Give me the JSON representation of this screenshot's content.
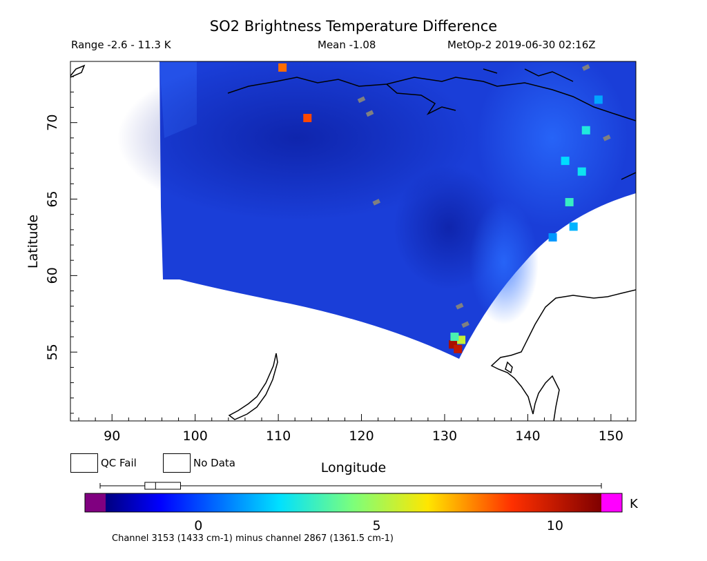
{
  "header": {
    "title": "SO2 Brightness Temperature Difference",
    "range": "Range -2.6 - 11.3 K",
    "mean": "Mean -1.08",
    "satellite_time": "MetOp-2 2019-06-30 02:16Z"
  },
  "legend": {
    "qc_fail_label": "QC Fail",
    "qc_fail_color": "#808080",
    "no_data_label": "No Data",
    "no_data_color": "#ffffff"
  },
  "colorbar": {
    "unit": "K",
    "ticks": [
      0,
      5,
      10
    ],
    "min": -2.6,
    "max": 11.3,
    "under_color": "#800080",
    "over_color": "#ff00ff",
    "box_summary": {
      "whisker_low": -2.6,
      "q1": -1.5,
      "median": -1.2,
      "q3": -0.5,
      "whisker_high": 11.3
    }
  },
  "footnote": "Channel 3153 (1433 cm-1) minus channel 2867 (1361.5 cm-1)",
  "chart_data": {
    "type": "heatmap",
    "title": "SO2 Brightness Temperature Difference",
    "xlabel": "Longitude",
    "ylabel": "Latitude",
    "xlim": [
      85,
      153
    ],
    "ylim": [
      50.5,
      74
    ],
    "xticks": [
      90,
      100,
      110,
      120,
      130,
      140,
      150
    ],
    "yticks": [
      55,
      60,
      65,
      70
    ],
    "background_field_value": -1.1,
    "hotspots": [
      {
        "lon": 131.0,
        "lat": 55.5,
        "value": 10.5
      },
      {
        "lon": 131.6,
        "lat": 55.2,
        "value": 10.0
      },
      {
        "lon": 132.0,
        "lat": 55.8,
        "value": 5.5
      },
      {
        "lon": 131.2,
        "lat": 56.0,
        "value": 3.5
      },
      {
        "lon": 145.0,
        "lat": 64.8,
        "value": 3.2
      },
      {
        "lon": 146.5,
        "lat": 66.8,
        "value": 2.5
      },
      {
        "lon": 147.0,
        "lat": 69.5,
        "value": 2.8
      },
      {
        "lon": 144.5,
        "lat": 67.5,
        "value": 2.2
      },
      {
        "lon": 145.5,
        "lat": 63.2,
        "value": 1.6
      },
      {
        "lon": 143.0,
        "lat": 62.5,
        "value": 1.2
      },
      {
        "lon": 148.5,
        "lat": 71.5,
        "value": 1.4
      },
      {
        "lon": 110.5,
        "lat": 73.6,
        "value": 8.0
      },
      {
        "lon": 113.5,
        "lat": 70.3,
        "value": 8.5
      }
    ],
    "qc_fail_points": [
      {
        "lon": 147.0,
        "lat": 73.6
      },
      {
        "lon": 149.5,
        "lat": 69.0
      },
      {
        "lon": 120.0,
        "lat": 71.5
      },
      {
        "lon": 121.0,
        "lat": 70.6
      },
      {
        "lon": 121.8,
        "lat": 64.8
      },
      {
        "lon": 131.8,
        "lat": 58.0
      },
      {
        "lon": 132.5,
        "lat": 56.8
      }
    ]
  }
}
